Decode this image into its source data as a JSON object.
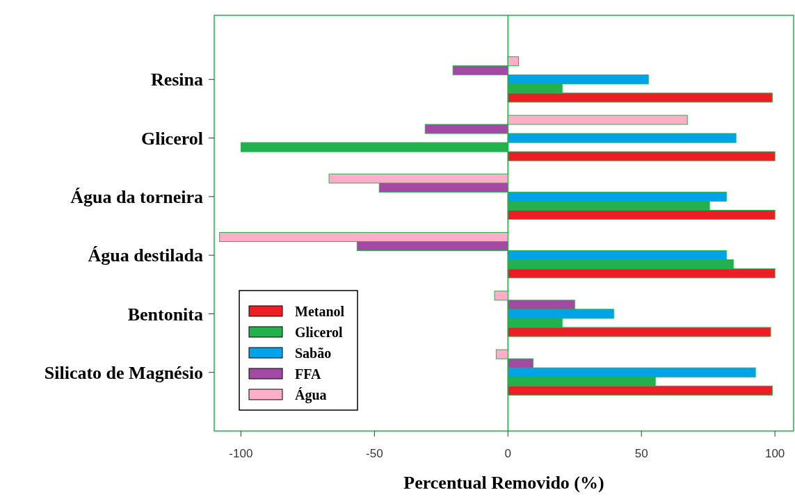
{
  "chart_data": {
    "type": "bar",
    "orientation": "horizontal",
    "xlabel": "Percentual Removido (%)",
    "categories": [
      "Resina",
      "Glicerol",
      "Água da torneira",
      "Água destilada",
      "Bentonita",
      "Silicato de Magnésio"
    ],
    "series": [
      {
        "name": "Metanol",
        "color": "#ee1c25",
        "values": [
          99,
          100,
          100,
          100,
          98.4,
          99
        ]
      },
      {
        "name": "Glicerol",
        "color": "#22b14c",
        "values": [
          20.3,
          -100,
          75.5,
          84.4,
          20.3,
          55.2
        ]
      },
      {
        "name": "Sabão",
        "color": "#00a2e8",
        "values": [
          52.6,
          85.4,
          81.8,
          81.8,
          39.6,
          92.7
        ]
      },
      {
        "name": "FFA",
        "color": "#a349a4",
        "values": [
          -20.6,
          -31,
          -48.2,
          -56.5,
          25,
          9.4
        ]
      },
      {
        "name": "Água",
        "color": "#ffaec9",
        "values": [
          4,
          67.2,
          -67,
          -108,
          -5,
          -4.4
        ]
      }
    ],
    "xlim": [
      -110,
      107
    ],
    "xticks": [
      -100,
      -50,
      0,
      50,
      100
    ],
    "grid": false,
    "ref_lines": [
      {
        "axis": "x",
        "value": 0,
        "color": "#22b14c"
      }
    ],
    "legend": "bottom left"
  }
}
